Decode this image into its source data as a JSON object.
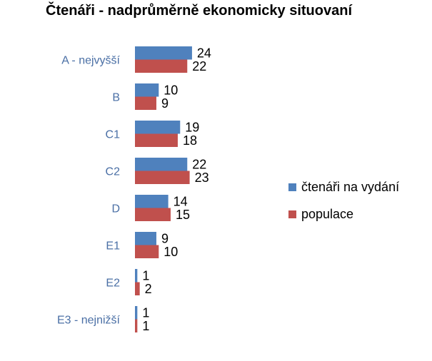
{
  "chart_data": {
    "type": "bar",
    "orientation": "horizontal",
    "title": "Čtenáři - nadprůměrně ekonomicky situovaní",
    "categories": [
      "A - nejvyšší",
      "B",
      "C1",
      "C2",
      "D",
      "E1",
      "E2",
      "E3 - nejnižší"
    ],
    "series": [
      {
        "name": "čtenáři na vydání",
        "color": "#4f81bd",
        "values": [
          24,
          10,
          19,
          22,
          14,
          9,
          1,
          1
        ]
      },
      {
        "name": "populace",
        "color": "#c0504d",
        "values": [
          22,
          9,
          18,
          23,
          15,
          10,
          2,
          1
        ]
      }
    ],
    "xlabel": "",
    "ylabel": "",
    "grid": false,
    "data_labels": true,
    "legend_position": "right"
  }
}
